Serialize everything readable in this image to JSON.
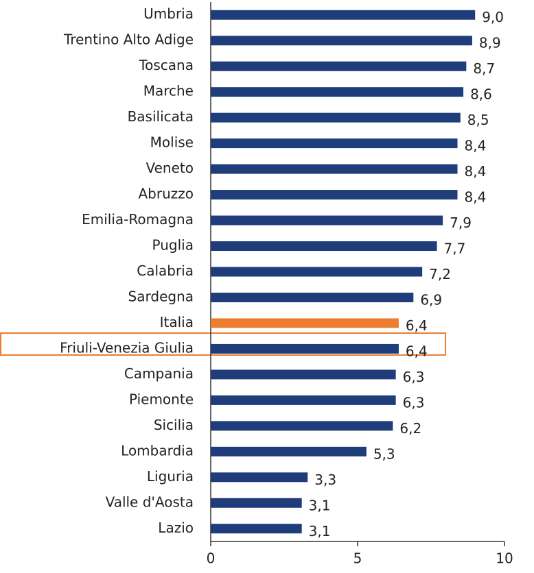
{
  "chart_data": {
    "type": "barh",
    "categories": [
      "Umbria",
      "Trentino Alto Adige",
      "Toscana",
      "Marche",
      "Basilicata",
      "Molise",
      "Veneto",
      "Abruzzo",
      "Emilia-Romagna",
      "Puglia",
      "Calabria",
      "Sardegna",
      "Italia",
      "Friuli-Venezia Giulia",
      "Campania",
      "Piemonte",
      "Sicilia",
      "Lombardia",
      "Liguria",
      "Valle d'Aosta",
      "Lazio"
    ],
    "values": [
      9.0,
      8.9,
      8.7,
      8.6,
      8.5,
      8.4,
      8.4,
      8.4,
      7.9,
      7.7,
      7.2,
      6.9,
      6.4,
      6.4,
      6.3,
      6.3,
      6.2,
      5.3,
      3.3,
      3.1,
      3.1
    ],
    "value_labels": [
      "9,0",
      "8,9",
      "8,7",
      "8,6",
      "8,5",
      "8,4",
      "8,4",
      "8,4",
      "7,9",
      "7,7",
      "7,2",
      "6,9",
      "6,4",
      "6,4",
      "6,3",
      "6,3",
      "6,2",
      "5,3",
      "3,3",
      "3,1",
      "3,1"
    ],
    "colors": [
      "#1f3d7a",
      "#1f3d7a",
      "#1f3d7a",
      "#1f3d7a",
      "#1f3d7a",
      "#1f3d7a",
      "#1f3d7a",
      "#1f3d7a",
      "#1f3d7a",
      "#1f3d7a",
      "#1f3d7a",
      "#1f3d7a",
      "#ed7d31",
      "#1f3d7a",
      "#1f3d7a",
      "#1f3d7a",
      "#1f3d7a",
      "#1f3d7a",
      "#1f3d7a",
      "#1f3d7a",
      "#1f3d7a"
    ],
    "xlim": [
      0,
      10
    ],
    "xticks": [
      0,
      5,
      10
    ]
  }
}
